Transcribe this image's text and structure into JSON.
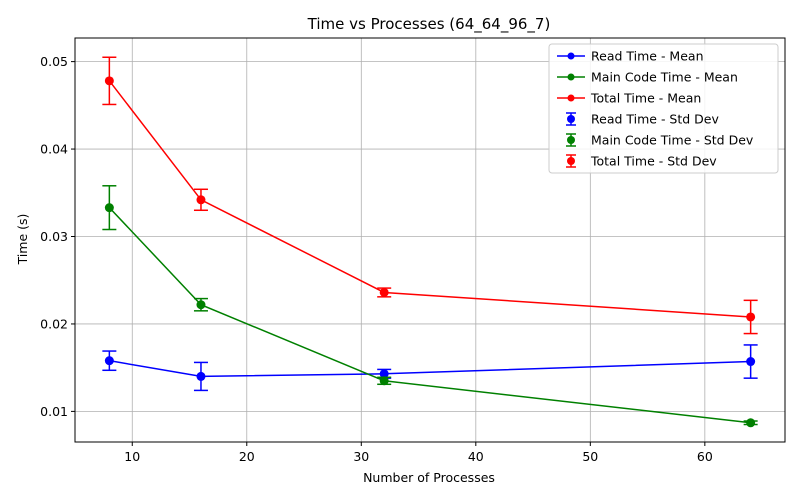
{
  "chart_data": {
    "type": "line",
    "title": "Time vs Processes (64_64_96_7)",
    "xlabel": "Number of Processes",
    "ylabel": "Time (s)",
    "xlim": [
      5,
      67
    ],
    "ylim": [
      0.0065,
      0.0527
    ],
    "xticks": [
      10,
      20,
      30,
      40,
      50,
      60
    ],
    "yticks": [
      0.01,
      0.02,
      0.03,
      0.04,
      0.05
    ],
    "xtick_labels": [
      "10",
      "20",
      "30",
      "40",
      "50",
      "60"
    ],
    "ytick_labels": [
      "0.01",
      "0.02",
      "0.03",
      "0.04",
      "0.05"
    ],
    "grid": true,
    "legend_position": "top-right",
    "x": [
      8,
      16,
      32,
      64
    ],
    "series": [
      {
        "name": "Read Time - Mean",
        "errorbar_name": "Read Time - Std Dev",
        "color": "#0000ff",
        "values": [
          0.0158,
          0.014,
          0.0143,
          0.0157
        ],
        "std": [
          0.0011,
          0.0016,
          0.0005,
          0.0019
        ]
      },
      {
        "name": "Main Code Time - Mean",
        "errorbar_name": "Main Code Time - Std Dev",
        "color": "#008000",
        "values": [
          0.0333,
          0.0222,
          0.0135,
          0.0087
        ],
        "std": [
          0.0025,
          0.0007,
          0.0004,
          0.0002
        ]
      },
      {
        "name": "Total Time - Mean",
        "errorbar_name": "Total Time - Std Dev",
        "color": "#ff0000",
        "values": [
          0.0478,
          0.0342,
          0.0236,
          0.0208
        ],
        "std": [
          0.0027,
          0.0012,
          0.0005,
          0.0019
        ]
      }
    ]
  }
}
